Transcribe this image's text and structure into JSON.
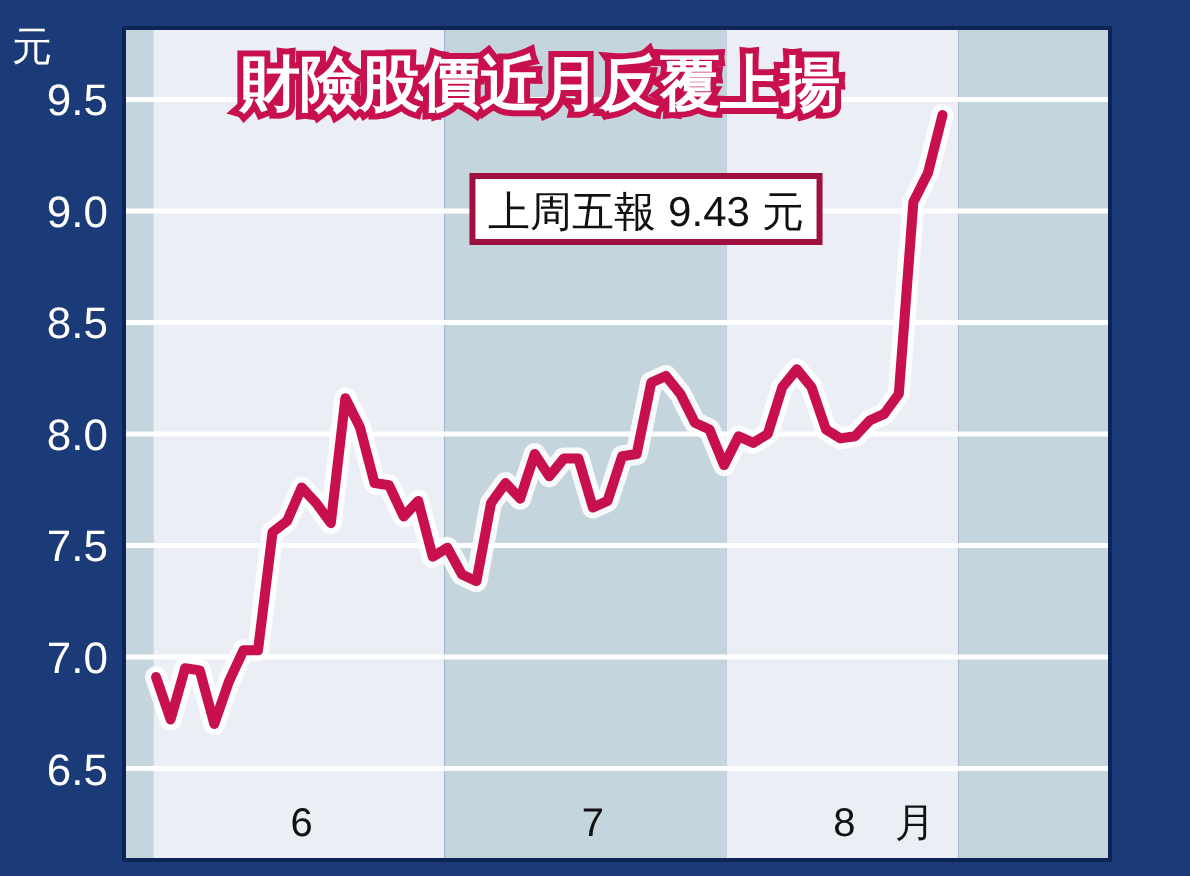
{
  "chart_data": {
    "type": "line",
    "title": "財險股價近月反覆上揚",
    "ylabel": "元",
    "annotations": [
      "上周五報 9.43 元"
    ],
    "categories": [
      null,
      null,
      null,
      null,
      null,
      null,
      null,
      null,
      null,
      null,
      "6",
      null,
      null,
      null,
      null,
      null,
      null,
      null,
      null,
      null,
      null,
      null,
      null,
      null,
      null,
      null,
      null,
      null,
      null,
      null,
      "7",
      null,
      null,
      null,
      null,
      null,
      null,
      null,
      null,
      null,
      null,
      null,
      null,
      null,
      null,
      null,
      null,
      null,
      null,
      null,
      "8　月",
      null,
      null,
      null,
      null,
      null,
      null,
      null,
      null,
      null,
      null,
      null,
      null,
      null,
      null,
      null
    ],
    "series": [
      {
        "color": "#c8104f",
        "values": [
          6.91,
          6.72,
          6.95,
          6.94,
          6.7,
          6.89,
          7.03,
          7.03,
          7.56,
          7.61,
          7.76,
          7.69,
          7.6,
          8.16,
          8.03,
          7.78,
          7.77,
          7.63,
          7.7,
          7.45,
          7.49,
          7.37,
          7.34,
          7.69,
          7.78,
          7.71,
          7.91,
          7.81,
          7.89,
          7.89,
          7.67,
          7.7,
          7.9,
          7.91,
          8.23,
          8.26,
          8.18,
          8.05,
          8.02,
          7.86,
          7.99,
          7.96,
          8.0,
          8.21,
          8.29,
          8.21,
          8.02,
          7.98,
          7.99,
          8.06,
          8.09,
          8.18,
          9.04,
          9.17,
          9.43,
          null,
          null,
          null,
          null,
          null,
          null,
          null,
          null,
          null,
          null,
          null
        ]
      }
    ],
    "ylim": [
      6.09,
      9.82
    ],
    "yticks": [
      {
        "value": 6.5,
        "label": "6.5"
      },
      {
        "value": 7.0,
        "label": "7.0"
      },
      {
        "value": 7.5,
        "label": "7.5"
      },
      {
        "value": 8.0,
        "label": "8.0"
      },
      {
        "value": 8.5,
        "label": "8.5"
      },
      {
        "value": 9.0,
        "label": "9.0"
      },
      {
        "value": 9.5,
        "label": "9.5"
      }
    ],
    "grid": "y",
    "line_style": "solid",
    "marker": "none"
  }
}
